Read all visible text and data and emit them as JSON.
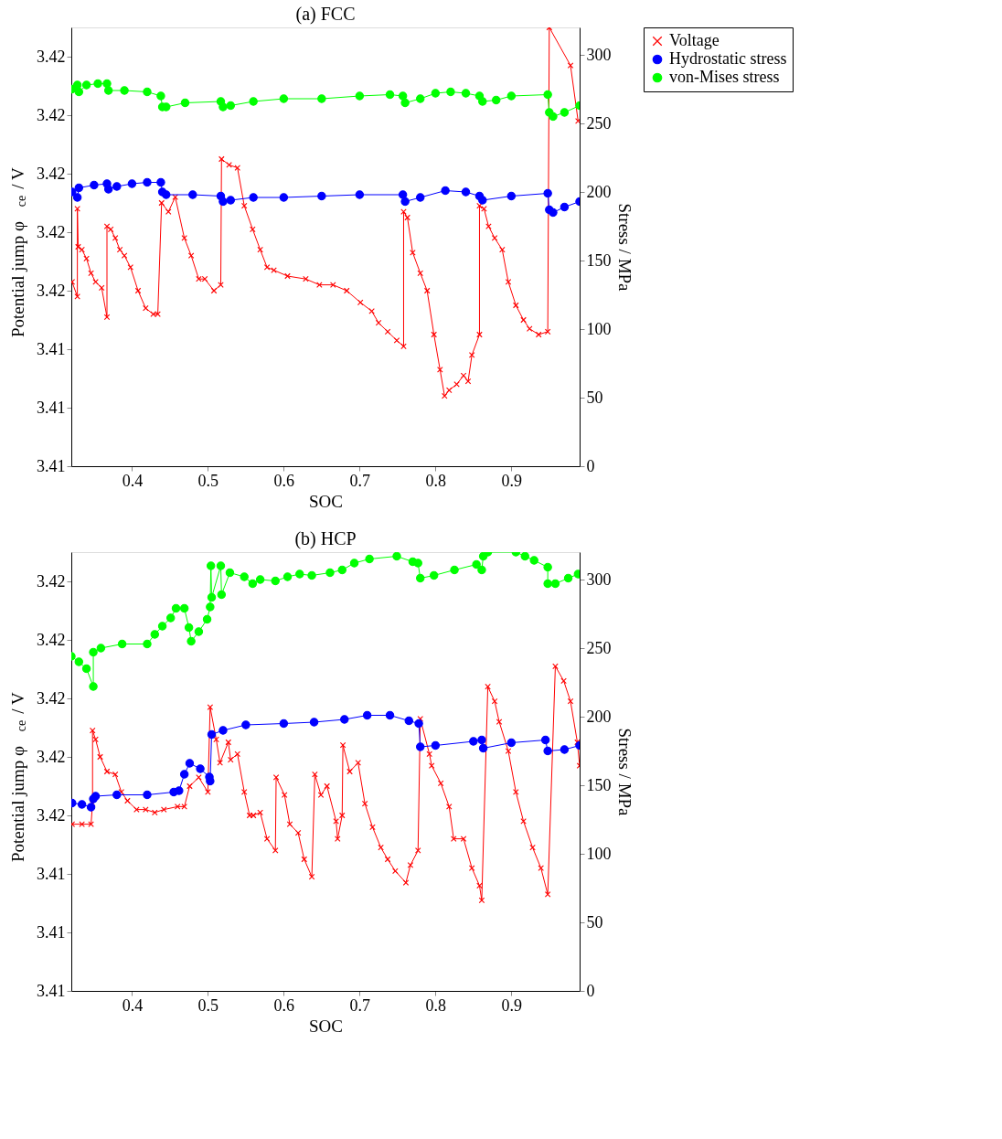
{
  "chart_data": [
    {
      "type": "line",
      "title": "(a) FCC",
      "xlabel": "SOC",
      "ylabel": "Potential jump φ$_{ce}$ / V",
      "y2label": "Stress / MPa",
      "xlim": [
        0.32,
        0.99
      ],
      "xticks": [
        0.4,
        0.5,
        0.6,
        0.7,
        0.8,
        0.9
      ],
      "ylim": [
        3.41,
        3.425
      ],
      "yticks": [
        {
          "value": 3.41,
          "label": "3.41"
        },
        {
          "value": 3.412,
          "label": "3.41"
        },
        {
          "value": 3.414,
          "label": "3.41"
        },
        {
          "value": 3.416,
          "label": "3.42"
        },
        {
          "value": 3.418,
          "label": "3.42"
        },
        {
          "value": 3.42,
          "label": "3.42"
        },
        {
          "value": 3.422,
          "label": "3.42"
        },
        {
          "value": 3.424,
          "label": "3.42"
        }
      ],
      "y2lim": [
        0,
        320
      ],
      "y2ticks": [
        0,
        50,
        100,
        150,
        200,
        250,
        300
      ],
      "grid": false,
      "legend": "top right",
      "series": [
        {
          "name": "Voltage",
          "color": "#ff0000",
          "marker": "cross",
          "x": [
            0.321,
            0.328,
            0.328,
            0.329,
            0.334,
            0.34,
            0.346,
            0.352,
            0.36,
            0.367,
            0.367,
            0.372,
            0.378,
            0.384,
            0.39,
            0.398,
            0.408,
            0.418,
            0.428,
            0.434,
            0.439,
            0.448,
            0.457,
            0.469,
            0.478,
            0.488,
            0.496,
            0.508,
            0.517,
            0.518,
            0.528,
            0.539,
            0.548,
            0.559,
            0.569,
            0.578,
            0.587,
            0.605,
            0.629,
            0.647,
            0.665,
            0.683,
            0.701,
            0.716,
            0.725,
            0.737,
            0.749,
            0.758,
            0.758,
            0.763,
            0.77,
            0.78,
            0.789,
            0.798,
            0.806,
            0.812,
            0.818,
            0.828,
            0.837,
            0.843,
            0.848,
            0.858,
            0.858,
            0.864,
            0.87,
            0.878,
            0.888,
            0.896,
            0.906,
            0.916,
            0.924,
            0.936,
            0.948,
            0.95,
            0.978,
            0.988
          ],
          "values": [
            3.4163,
            3.4158,
            3.4188,
            3.4175,
            3.4174,
            3.4171,
            3.4166,
            3.4163,
            3.4161,
            3.4151,
            3.4182,
            3.4181,
            3.4178,
            3.4174,
            3.4172,
            3.4168,
            3.416,
            3.4154,
            3.4152,
            3.4152,
            3.419,
            3.4187,
            3.4192,
            3.4178,
            3.4172,
            3.4164,
            3.4164,
            3.416,
            3.4162,
            3.4205,
            3.4203,
            3.4202,
            3.4189,
            3.4181,
            3.4174,
            3.4168,
            3.4167,
            3.4165,
            3.4164,
            3.4162,
            3.4162,
            3.416,
            3.4156,
            3.4153,
            3.4149,
            3.4146,
            3.4143,
            3.4141,
            3.4187,
            3.4185,
            3.4173,
            3.4166,
            3.416,
            3.4145,
            3.4133,
            3.4124,
            3.4126,
            3.4128,
            3.4131,
            3.4129,
            3.4138,
            3.4145,
            3.4189,
            3.4188,
            3.4182,
            3.4178,
            3.4174,
            3.4163,
            3.4155,
            3.415,
            3.4147,
            3.4145,
            3.4146,
            3.425,
            3.4237,
            3.4218
          ]
        },
        {
          "name": "Hydrostatic stress",
          "color": "#0000ff",
          "marker": "circle",
          "axis": "y2",
          "x": [
            0.321,
            0.328,
            0.33,
            0.35,
            0.367,
            0.369,
            0.38,
            0.4,
            0.42,
            0.438,
            0.44,
            0.445,
            0.48,
            0.517,
            0.52,
            0.53,
            0.56,
            0.6,
            0.65,
            0.7,
            0.757,
            0.76,
            0.78,
            0.813,
            0.84,
            0.858,
            0.862,
            0.9,
            0.948,
            0.95,
            0.955,
            0.97,
            0.99
          ],
          "values": [
            200,
            196,
            203,
            205,
            206,
            202,
            204,
            206,
            207,
            207,
            200,
            198,
            198,
            197,
            193,
            194,
            196,
            196,
            197,
            198,
            198,
            193,
            196,
            201,
            200,
            197,
            194,
            197,
            199,
            187,
            185,
            189,
            193
          ]
        },
        {
          "name": "von-Mises stress",
          "color": "#00ff00",
          "marker": "circle",
          "axis": "y2",
          "x": [
            0.321,
            0.328,
            0.33,
            0.34,
            0.355,
            0.367,
            0.369,
            0.39,
            0.42,
            0.438,
            0.44,
            0.445,
            0.47,
            0.517,
            0.52,
            0.53,
            0.56,
            0.6,
            0.65,
            0.7,
            0.74,
            0.757,
            0.76,
            0.78,
            0.8,
            0.82,
            0.84,
            0.858,
            0.862,
            0.88,
            0.9,
            0.948,
            0.95,
            0.955,
            0.97,
            0.99
          ],
          "values": [
            275,
            278,
            273,
            278,
            279,
            279,
            274,
            274,
            273,
            270,
            262,
            262,
            265,
            266,
            262,
            263,
            266,
            268,
            268,
            270,
            271,
            270,
            265,
            268,
            272,
            273,
            272,
            270,
            266,
            267,
            270,
            271,
            258,
            255,
            258,
            263
          ]
        }
      ]
    },
    {
      "type": "line",
      "title": "(b) HCP",
      "xlabel": "SOC",
      "ylabel": "Potential jump φ$_{ce}$ / V",
      "y2label": "Stress / MPa",
      "xlim": [
        0.32,
        0.99
      ],
      "xticks": [
        0.4,
        0.5,
        0.6,
        0.7,
        0.8,
        0.9
      ],
      "ylim": [
        3.41,
        3.425
      ],
      "yticks": [
        {
          "value": 3.41,
          "label": "3.41"
        },
        {
          "value": 3.412,
          "label": "3.41"
        },
        {
          "value": 3.414,
          "label": "3.41"
        },
        {
          "value": 3.416,
          "label": "3.42"
        },
        {
          "value": 3.418,
          "label": "3.42"
        },
        {
          "value": 3.42,
          "label": "3.42"
        },
        {
          "value": 3.422,
          "label": "3.42"
        },
        {
          "value": 3.424,
          "label": "3.42"
        }
      ],
      "y2lim": [
        0,
        320
      ],
      "y2ticks": [
        0,
        50,
        100,
        150,
        200,
        250,
        300
      ],
      "grid": false,
      "legend": "top right",
      "series": [
        {
          "name": "Voltage",
          "color": "#ff0000",
          "marker": "cross",
          "x": [
            0.321,
            0.334,
            0.346,
            0.348,
            0.348,
            0.352,
            0.358,
            0.367,
            0.378,
            0.386,
            0.394,
            0.406,
            0.418,
            0.43,
            0.442,
            0.46,
            0.469,
            0.476,
            0.488,
            0.5,
            0.503,
            0.511,
            0.516,
            0.527,
            0.53,
            0.539,
            0.548,
            0.555,
            0.56,
            0.569,
            0.578,
            0.589,
            0.59,
            0.601,
            0.608,
            0.619,
            0.627,
            0.637,
            0.641,
            0.649,
            0.657,
            0.669,
            0.671,
            0.677,
            0.678,
            0.687,
            0.698,
            0.707,
            0.717,
            0.728,
            0.737,
            0.747,
            0.761,
            0.767,
            0.777,
            0.78,
            0.792,
            0.795,
            0.807,
            0.818,
            0.824,
            0.837,
            0.848,
            0.858,
            0.861,
            0.869,
            0.878,
            0.884,
            0.896,
            0.906,
            0.916,
            0.928,
            0.939,
            0.948,
            0.958,
            0.969,
            0.978,
            0.987,
            0.99
          ],
          "values": [
            3.4157,
            3.4157,
            3.4157,
            3.4164,
            3.4189,
            3.4186,
            3.418,
            3.4175,
            3.4174,
            3.4168,
            3.4165,
            3.4162,
            3.4162,
            3.4161,
            3.4162,
            3.4163,
            3.4163,
            3.417,
            3.4173,
            3.4168,
            3.4197,
            3.4186,
            3.4178,
            3.4185,
            3.4179,
            3.4181,
            3.4168,
            3.416,
            3.416,
            3.4161,
            3.4152,
            3.4148,
            3.4173,
            3.4167,
            3.4157,
            3.4154,
            3.4145,
            3.4139,
            3.4174,
            3.4167,
            3.417,
            3.4158,
            3.4152,
            3.416,
            3.4184,
            3.4175,
            3.4178,
            3.4164,
            3.4156,
            3.4149,
            3.4145,
            3.4141,
            3.4137,
            3.4143,
            3.4148,
            3.4193,
            3.4181,
            3.4177,
            3.4171,
            3.4163,
            3.4152,
            3.4152,
            3.4142,
            3.4136,
            3.4131,
            3.4204,
            3.4199,
            3.4192,
            3.4182,
            3.4168,
            3.4158,
            3.4149,
            3.4142,
            3.4133,
            3.4211,
            3.4206,
            3.4199,
            3.4185,
            3.4177
          ]
        },
        {
          "name": "Hydrostatic stress",
          "color": "#0000ff",
          "marker": "circle",
          "axis": "y2",
          "x": [
            0.321,
            0.334,
            0.346,
            0.349,
            0.352,
            0.38,
            0.42,
            0.455,
            0.462,
            0.469,
            0.476,
            0.49,
            0.502,
            0.503,
            0.505,
            0.52,
            0.55,
            0.6,
            0.64,
            0.68,
            0.71,
            0.74,
            0.765,
            0.778,
            0.78,
            0.8,
            0.85,
            0.861,
            0.863,
            0.9,
            0.945,
            0.948,
            0.97,
            0.99
          ],
          "values": [
            137,
            136,
            134,
            140,
            142,
            143,
            143,
            145,
            146,
            158,
            166,
            162,
            156,
            153,
            187,
            190,
            194,
            195,
            196,
            198,
            201,
            201,
            197,
            195,
            178,
            179,
            182,
            183,
            177,
            181,
            183,
            175,
            176,
            179
          ]
        },
        {
          "name": "von-Mises stress",
          "color": "#00ff00",
          "marker": "circle",
          "axis": "y2",
          "x": [
            0.32,
            0.33,
            0.34,
            0.349,
            0.349,
            0.359,
            0.387,
            0.42,
            0.43,
            0.44,
            0.451,
            0.458,
            0.469,
            0.475,
            0.478,
            0.488,
            0.499,
            0.503,
            0.504,
            0.505,
            0.517,
            0.518,
            0.529,
            0.548,
            0.559,
            0.569,
            0.589,
            0.605,
            0.621,
            0.637,
            0.661,
            0.677,
            0.693,
            0.713,
            0.749,
            0.77,
            0.777,
            0.78,
            0.798,
            0.825,
            0.854,
            0.861,
            0.863,
            0.869,
            0.906,
            0.918,
            0.93,
            0.948,
            0.948,
            0.958,
            0.975,
            0.988
          ],
          "values": [
            244,
            240,
            235,
            222,
            247,
            250,
            253,
            253,
            260,
            266,
            272,
            279,
            279,
            265,
            255,
            262,
            271,
            280,
            310,
            287,
            310,
            289,
            305,
            302,
            297,
            300,
            299,
            302,
            304,
            303,
            305,
            307,
            312,
            315,
            317,
            313,
            312,
            301,
            303,
            307,
            311,
            307,
            317,
            320,
            320,
            317,
            314,
            309,
            297,
            297,
            301,
            304
          ]
        }
      ]
    }
  ]
}
